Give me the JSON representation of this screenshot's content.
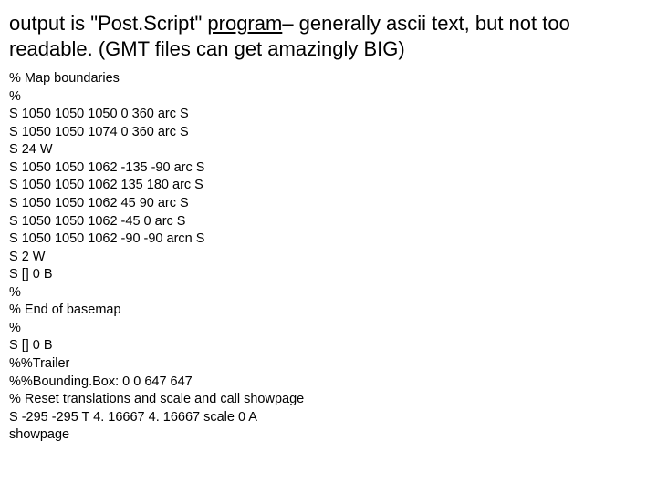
{
  "heading": {
    "part1": "output is \"Post.Script\"  ",
    "underlined": "program",
    "part2": "– generally ascii text, but not too readable. (GMT files can get amazingly BIG)"
  },
  "code": {
    "lines": [
      "% Map boundaries",
      "%",
      "S 1050 1050 1050 0 360 arc S",
      "S 1050 1050 1074 0 360 arc S",
      "S 24 W",
      "S 1050 1050 1062 -135 -90 arc S",
      "S 1050 1050 1062 135 180 arc S",
      "S 1050 1050 1062 45 90 arc S",
      "S 1050 1050 1062 -45 0 arc S",
      "S 1050 1050 1062 -90 -90 arcn S",
      "S 2 W",
      "S [] 0 B",
      "%",
      "% End of basemap",
      "%",
      "S [] 0 B",
      "%%Trailer",
      "%%Bounding.Box: 0 0 647 647",
      "% Reset translations and scale and call showpage",
      "S -295 -295 T 4. 16667 4. 16667 scale 0 A",
      "showpage"
    ]
  },
  "colors": {
    "background": "#ffffff",
    "text": "#000000"
  },
  "typography": {
    "heading_fontsize": 22,
    "code_fontsize": 14.5,
    "font_family": "Arial"
  }
}
